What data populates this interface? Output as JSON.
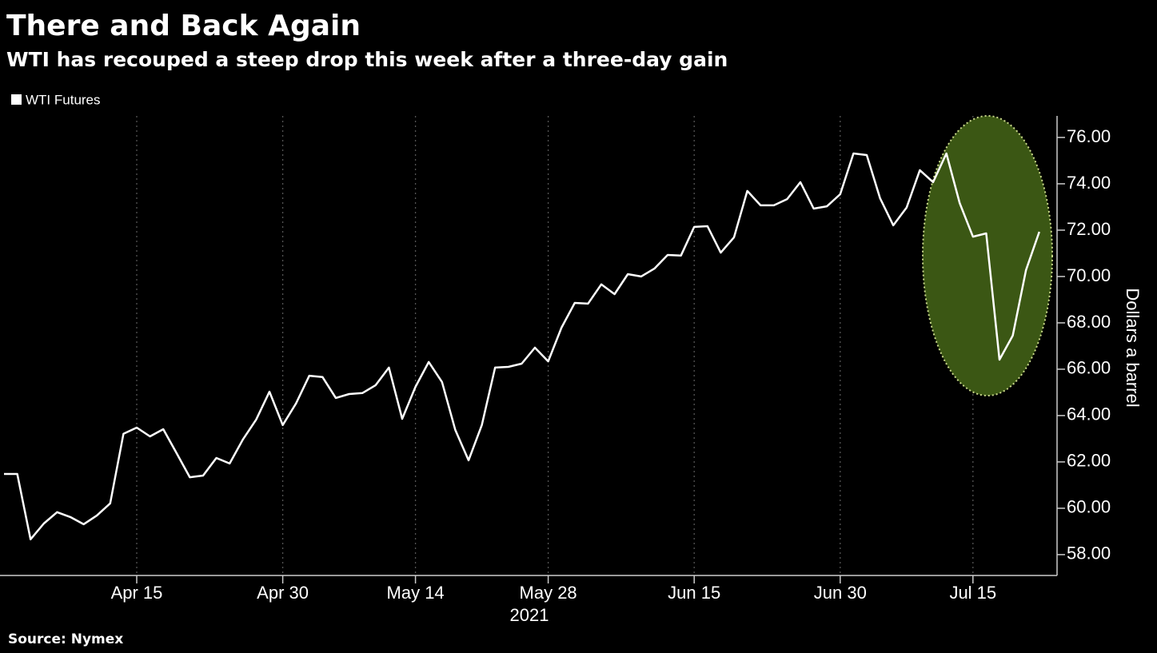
{
  "chart_data": {
    "type": "line",
    "title": "There and Back Again",
    "subtitle": "WTI has recouped a steep drop this week after a three-day gain",
    "y_label": "Dollars a barrel",
    "x_label": "2021",
    "source": "Source: Nymex",
    "categories": [
      null,
      null,
      null,
      null,
      null,
      null,
      null,
      null,
      null,
      null,
      "Apr 15",
      null,
      null,
      null,
      null,
      null,
      null,
      null,
      null,
      null,
      null,
      "Apr 30",
      null,
      null,
      null,
      null,
      null,
      null,
      null,
      null,
      null,
      "May 14",
      null,
      null,
      null,
      null,
      null,
      null,
      null,
      null,
      null,
      "May 28",
      null,
      null,
      null,
      null,
      null,
      null,
      null,
      null,
      null,
      null,
      "Jun 15",
      null,
      null,
      null,
      null,
      null,
      null,
      null,
      null,
      null,
      null,
      "Jun 30",
      null,
      null,
      null,
      null,
      null,
      null,
      null,
      null,
      null,
      "Jul 15",
      null,
      null,
      null,
      null,
      null
    ],
    "series": [
      {
        "name": "WTI Futures",
        "color": "#ffffff",
        "values": [
          61.48,
          61.48,
          58.66,
          59.34,
          59.83,
          59.62,
          59.31,
          59.69,
          60.21,
          63.21,
          63.48,
          63.1,
          63.41,
          62.38,
          61.34,
          61.41,
          62.17,
          61.93,
          62.97,
          63.83,
          65.03,
          63.59,
          64.52,
          65.72,
          65.66,
          64.76,
          64.93,
          64.97,
          65.31,
          66.07,
          63.86,
          65.24,
          66.31,
          65.45,
          63.38,
          62.07,
          63.59,
          66.07,
          66.1,
          66.24,
          66.93,
          66.34,
          67.79,
          68.86,
          68.83,
          69.66,
          69.24,
          70.1,
          70.0,
          70.34,
          70.93,
          70.9,
          72.14,
          72.17,
          71.03,
          71.69,
          73.69,
          73.07,
          73.07,
          73.34,
          74.07,
          72.93,
          73.03,
          73.55,
          75.31,
          75.24,
          73.38,
          72.21,
          72.97,
          74.59,
          74.07,
          75.31,
          73.17,
          71.72,
          71.86,
          66.41,
          67.45,
          70.28,
          71.93
        ]
      }
    ],
    "ylim": [
      57.1,
      76.93
    ],
    "yticks": [
      {
        "value": 58,
        "label": "58.00"
      },
      {
        "value": 60,
        "label": "60.00"
      },
      {
        "value": 62,
        "label": "62.00"
      },
      {
        "value": 64,
        "label": "64.00"
      },
      {
        "value": 66,
        "label": "66.00"
      },
      {
        "value": 68,
        "label": "68.00"
      },
      {
        "value": 70,
        "label": "70.00"
      },
      {
        "value": 72,
        "label": "72.00"
      },
      {
        "value": 74,
        "label": "74.00"
      },
      {
        "value": 76,
        "label": "76.00"
      }
    ],
    "grid": true
  }
}
